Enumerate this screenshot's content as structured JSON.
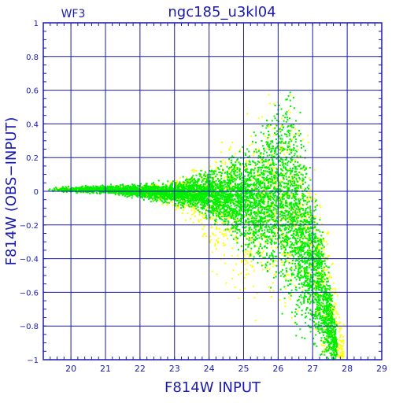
{
  "chart_data": {
    "type": "scatter",
    "title": "ngc185_u3kl04",
    "subtitle": "WF3",
    "xlabel": "F814W INPUT",
    "ylabel": "F814W (OBS−INPUT)",
    "xlim": [
      19.2,
      29
    ],
    "ylim": [
      -1,
      1
    ],
    "x_ticks": [
      20,
      21,
      22,
      23,
      24,
      25,
      26,
      27,
      28,
      29
    ],
    "x_tick_labels": [
      "20",
      "21",
      "22",
      "23",
      "24",
      "25",
      "26",
      "27",
      "28",
      "29"
    ],
    "y_ticks": [
      -1,
      -0.8,
      -0.6,
      -0.4,
      -0.2,
      0,
      0.2,
      0.4,
      0.6,
      0.8,
      1
    ],
    "y_tick_labels": [
      "−1",
      "−0.8",
      "−0.6",
      "−0.4",
      "−0.2",
      "0",
      "0.2",
      "0.4",
      "0.6",
      "0.8",
      "1"
    ],
    "grid": true,
    "series": [
      {
        "color": "#ffff00",
        "envelope": {
          "x": [
            19.3,
            20,
            21,
            22,
            23,
            23.5,
            24,
            24.5,
            25,
            25.5,
            26,
            26.5,
            27,
            27.5,
            27.9
          ],
          "center": [
            0.01,
            0.01,
            0.01,
            0.0,
            -0.01,
            -0.03,
            -0.08,
            -0.12,
            -0.14,
            -0.1,
            -0.05,
            -0.1,
            -0.35,
            -0.7,
            -0.95
          ],
          "spread": [
            0.01,
            0.01,
            0.015,
            0.02,
            0.06,
            0.12,
            0.22,
            0.3,
            0.38,
            0.42,
            0.45,
            0.45,
            0.35,
            0.3,
            0.1
          ]
        },
        "points": 1800
      },
      {
        "color": "#00ee00",
        "envelope": {
          "x": [
            19.3,
            20,
            21,
            22,
            23,
            23.5,
            24,
            24.5,
            25,
            25.5,
            26,
            26.3,
            26.6,
            27,
            27.4,
            27.7
          ],
          "center": [
            0.01,
            0.01,
            0.01,
            0.0,
            -0.01,
            -0.01,
            -0.02,
            -0.03,
            -0.04,
            -0.05,
            0.0,
            -0.05,
            -0.2,
            -0.45,
            -0.7,
            -0.95
          ],
          "spread": [
            0.012,
            0.013,
            0.018,
            0.03,
            0.05,
            0.07,
            0.1,
            0.14,
            0.2,
            0.28,
            0.4,
            0.45,
            0.42,
            0.32,
            0.25,
            0.1
          ]
        },
        "points": 6000
      }
    ],
    "colors": {
      "axis": "#1a1ab0",
      "green": "#00ee00",
      "yellow": "#ffff00"
    }
  }
}
